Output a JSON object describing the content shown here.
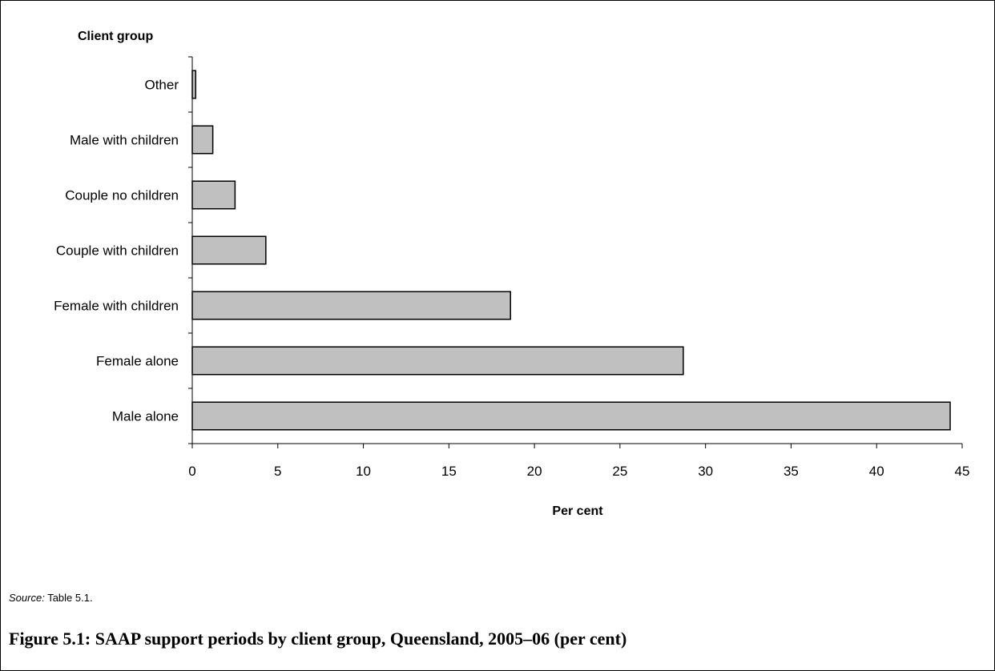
{
  "chart_data": {
    "type": "bar",
    "orientation": "horizontal",
    "ylabel": "Client group",
    "xlabel": "Per cent",
    "categories": [
      "Other",
      "Male with children",
      "Couple no children",
      "Couple with children",
      "Female with children",
      "Female alone",
      "Male alone"
    ],
    "values": [
      0.2,
      1.2,
      2.5,
      4.3,
      18.6,
      28.7,
      44.3
    ],
    "xlim": [
      0,
      45
    ],
    "xticks": [
      "0",
      "5",
      "10",
      "15",
      "20",
      "25",
      "30",
      "35",
      "40",
      "45"
    ],
    "grid": false,
    "bar_color": "#c0c0c0",
    "bar_edge_color": "#000000"
  },
  "source": {
    "label": "Source:",
    "text": "Table 5.1."
  },
  "caption": "Figure 5.1: SAAP support periods by client group, Queensland, 2005–06 (per cent)"
}
